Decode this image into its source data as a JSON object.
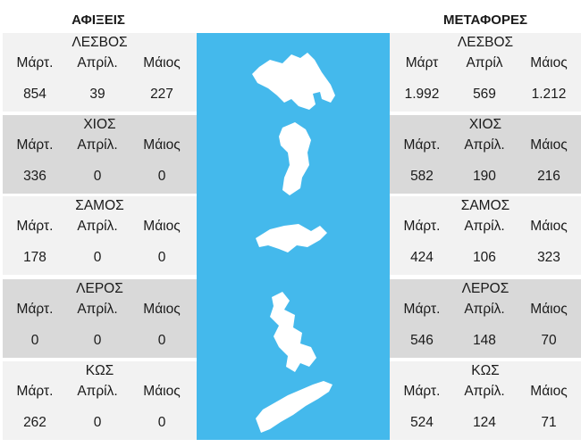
{
  "arrivals": {
    "title": "ΑΦΙΞΕΙΣ",
    "islands": [
      {
        "name": "ΛΕΣΒΟΣ",
        "months": [
          "Μάρτ.",
          "Απρίλ.",
          "Μάιος"
        ],
        "values": [
          "854",
          "39",
          "227"
        ]
      },
      {
        "name": "ΧΙΟΣ",
        "months": [
          "Μάρτ.",
          "Απρίλ.",
          "Μάιος"
        ],
        "values": [
          "336",
          "0",
          "0"
        ]
      },
      {
        "name": "ΣΑΜΟΣ",
        "months": [
          "Μάρτ.",
          "Απρίλ.",
          "Μάιος"
        ],
        "values": [
          "178",
          "0",
          "0"
        ]
      },
      {
        "name": "ΛΕΡΟΣ",
        "months": [
          "Μάρτ.",
          "Απρίλ.",
          "Μάιος"
        ],
        "values": [
          "0",
          "0",
          "0"
        ]
      },
      {
        "name": "ΚΩΣ",
        "months": [
          "Μάρτ.",
          "Απρίλ.",
          "Μάιος"
        ],
        "values": [
          "262",
          "0",
          "0"
        ]
      }
    ]
  },
  "transfers": {
    "title": "ΜΕΤΑΦΟΡΕΣ",
    "islands": [
      {
        "name": "ΛΕΣΒΟΣ",
        "months": [
          "Μάρτ",
          "Απρίλ",
          "Μάιος"
        ],
        "values": [
          "1.992",
          "569",
          "1.212"
        ]
      },
      {
        "name": "ΧΙΟΣ",
        "months": [
          "Μάρτ.",
          "Απρίλ.",
          "Μάιος"
        ],
        "values": [
          "582",
          "190",
          "216"
        ]
      },
      {
        "name": "ΣΑΜΟΣ",
        "months": [
          "Μάρτ.",
          "Απρίλ.",
          "Μάιος"
        ],
        "values": [
          "424",
          "106",
          "323"
        ]
      },
      {
        "name": "ΛΕΡΟΣ",
        "months": [
          "Μάρτ.",
          "Απρίλ.",
          "Μάιος"
        ],
        "values": [
          "546",
          "148",
          "70"
        ]
      },
      {
        "name": "ΚΩΣ",
        "months": [
          "Μάρτ.",
          "Απρίλ.",
          "Μάιος"
        ],
        "values": [
          "524",
          "124",
          "71"
        ]
      }
    ]
  },
  "colors": {
    "sea": "#44b9ec",
    "island": "#ffffff",
    "row_light": "#f2f2f2",
    "row_dark": "#d9d9d9"
  }
}
